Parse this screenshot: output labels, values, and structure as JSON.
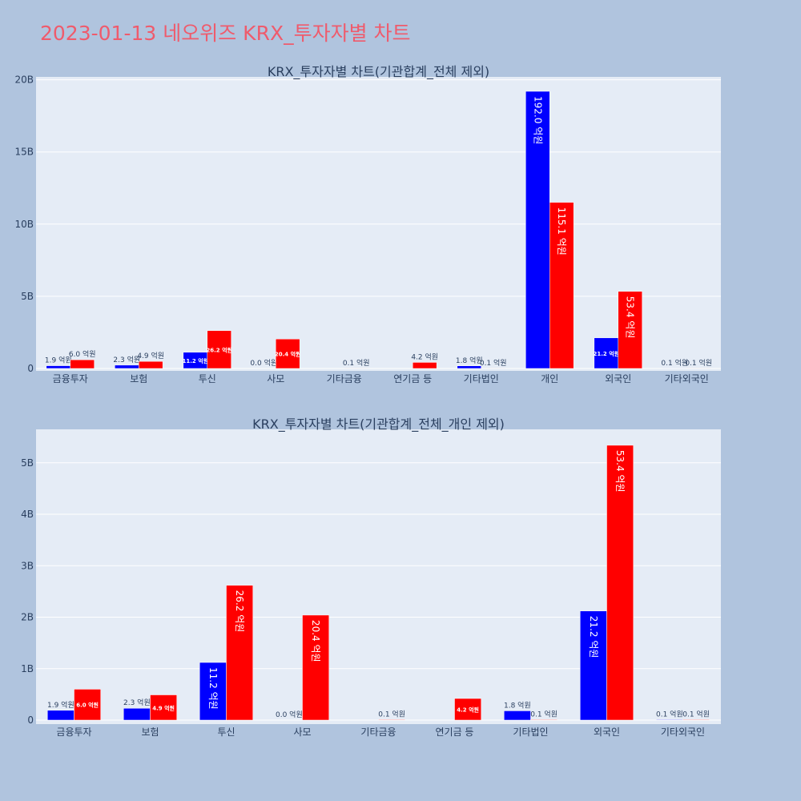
{
  "page_title": "2023-01-13 네오위즈 KRX_투자자별 차트",
  "colors": {
    "buy": "#0000ff",
    "sell": "#ff0000",
    "title": "#ef5b6c",
    "plot_bg": "#e5ecf6",
    "page_bg": "#b0c4de"
  },
  "chart_data": [
    {
      "type": "bar",
      "title": "KRX_투자자별 차트(기관합계_전체 제외)",
      "categories": [
        "금융투자",
        "보험",
        "투신",
        "사모",
        "기타금융",
        "연기금 등",
        "기타법인",
        "개인",
        "외국인",
        "기타외국인"
      ],
      "series": [
        {
          "name": "buy",
          "color": "#0000ff",
          "values": [
            190000000,
            230000000,
            1120000000,
            0,
            0,
            0,
            180000000,
            19200000000,
            2120000000,
            10000000
          ],
          "labels": [
            "1.9 억원",
            "2.3 억원",
            "11.2 억원",
            "0.0 억원",
            "",
            "",
            "1.8 억원",
            "192.0 억원",
            "21.2 억원",
            "0.1 억원"
          ]
        },
        {
          "name": "sell",
          "color": "#ff0000",
          "values": [
            600000000,
            490000000,
            2620000000,
            2040000000,
            10000000,
            420000000,
            10000000,
            11510000000,
            5340000000,
            10000000
          ],
          "labels": [
            "6.0 억원",
            "4.9 억원",
            "26.2 억원",
            "20.4 억원",
            "0.1 억원",
            "4.2 억원",
            "0.1 억원",
            "115.1 억원",
            "53.4 억원",
            "0.1 억원"
          ]
        }
      ],
      "yticks": [
        0,
        5000000000,
        10000000000,
        15000000000,
        20000000000
      ],
      "ytick_labels": [
        "0",
        "5B",
        "10B",
        "15B",
        "20B"
      ],
      "ylim": [
        0,
        20200000000
      ]
    },
    {
      "type": "bar",
      "title": "KRX_투자자별 차트(기관합계_전체_개인 제외)",
      "categories": [
        "금융투자",
        "보험",
        "투신",
        "사모",
        "기타금융",
        "연기금 등",
        "기타법인",
        "외국인",
        "기타외국인"
      ],
      "series": [
        {
          "name": "buy",
          "color": "#0000ff",
          "values": [
            190000000,
            230000000,
            1120000000,
            0,
            0,
            0,
            180000000,
            2120000000,
            10000000
          ],
          "labels": [
            "1.9 억원",
            "2.3 억원",
            "11.2 억원",
            "0.0 억원",
            "",
            "",
            "1.8 억원",
            "21.2 억원",
            "0.1 억원"
          ]
        },
        {
          "name": "sell",
          "color": "#ff0000",
          "values": [
            600000000,
            490000000,
            2620000000,
            2040000000,
            10000000,
            420000000,
            10000000,
            5340000000,
            10000000
          ],
          "labels": [
            "6.0 억원",
            "4.9 억원",
            "26.2 억원",
            "20.4 억원",
            "0.1 억원",
            "4.2 억원",
            "0.1 억원",
            "53.4 억원",
            "0.1 억원"
          ]
        }
      ],
      "yticks": [
        0,
        1000000000,
        2000000000,
        3000000000,
        4000000000,
        5000000000
      ],
      "ytick_labels": [
        "0",
        "1B",
        "2B",
        "3B",
        "4B",
        "5B"
      ],
      "ylim": [
        0,
        5650000000
      ]
    }
  ]
}
